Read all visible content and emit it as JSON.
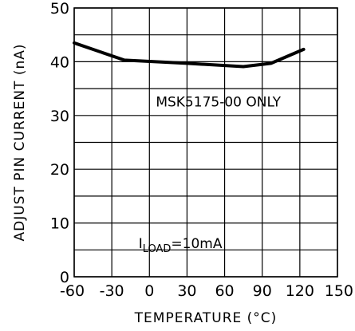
{
  "chart_data": {
    "type": "line",
    "xlabel": "TEMPERATURE (°C)",
    "ylabel": "ADJUST PIN CURRENT (nA)",
    "xlim": [
      -60,
      150
    ],
    "ylim": [
      0,
      50
    ],
    "x_ticks": [
      -60,
      -30,
      0,
      30,
      60,
      90,
      120,
      150
    ],
    "x_tick_labels": [
      "-60",
      "-30",
      "0",
      "30",
      "60",
      "90",
      "120",
      "150"
    ],
    "y_ticks": [
      0,
      10,
      20,
      30,
      40,
      50
    ],
    "y_tick_labels": [
      "0",
      "10",
      "20",
      "30",
      "40",
      "50"
    ],
    "grid": true,
    "series": [
      {
        "x": [
          -60,
          -20,
          30,
          75,
          97,
          123
        ],
        "y": [
          43.5,
          40.3,
          39.7,
          39.1,
          39.7,
          42.3
        ]
      }
    ],
    "annotations": [
      {
        "text": "MSK5175-00 ONLY",
        "x": 55,
        "y": 32.6
      },
      {
        "text_main": "I",
        "text_sub": "LOAD",
        "text_rest": "=10mA",
        "x": 20,
        "y": 6.2
      }
    ]
  }
}
